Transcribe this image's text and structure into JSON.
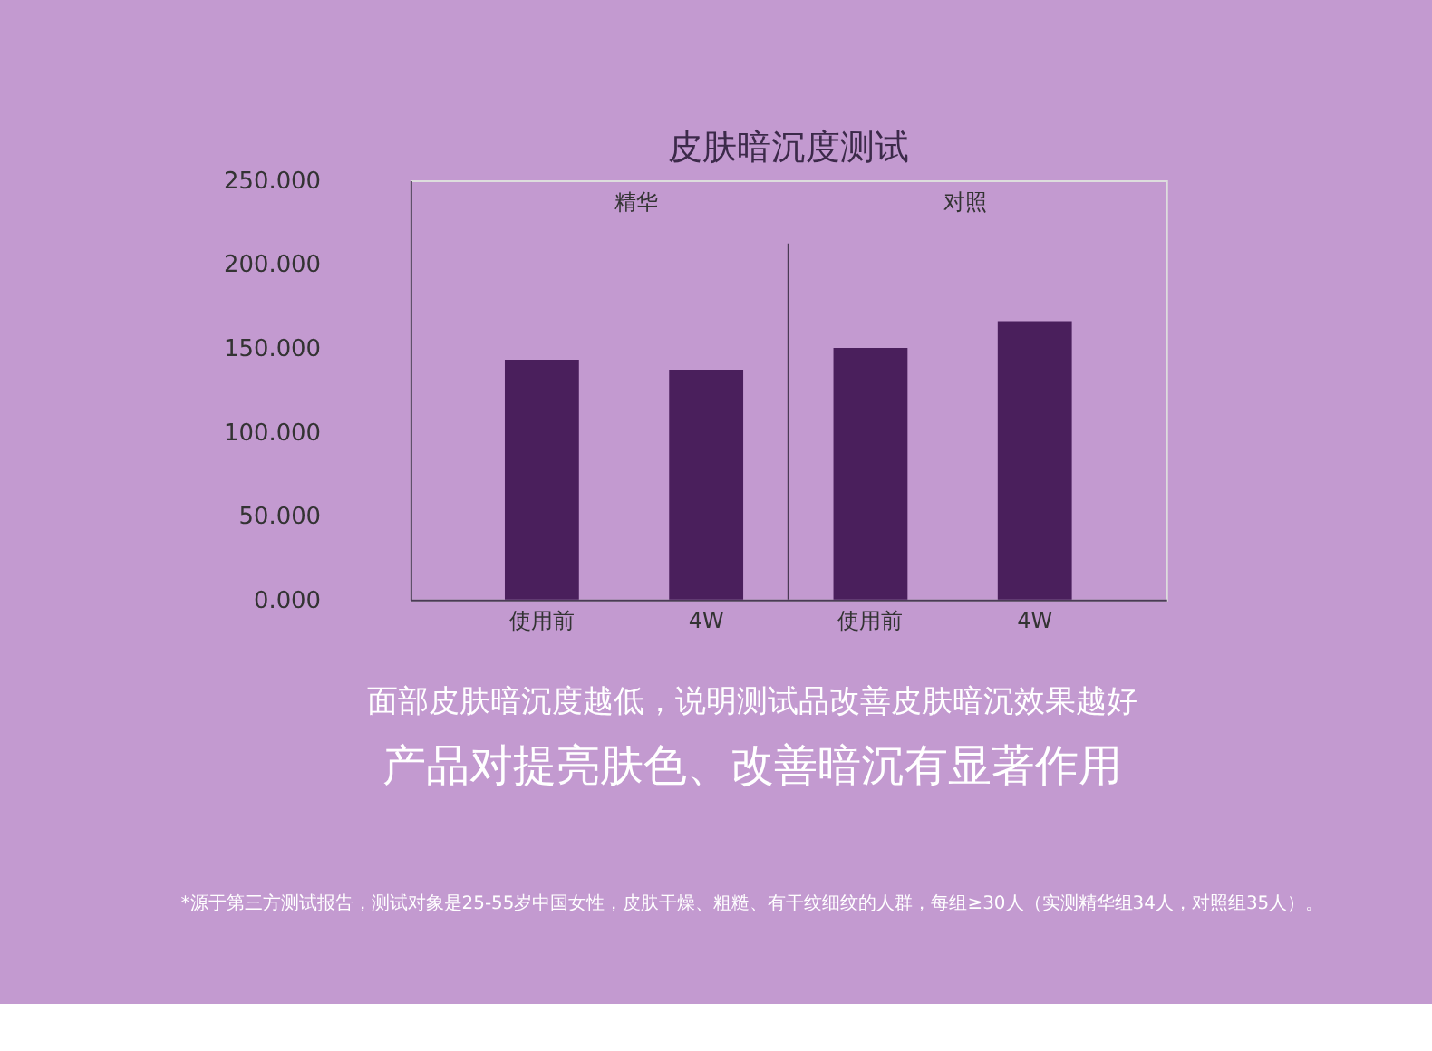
{
  "chart_data": {
    "type": "bar",
    "title": "皮肤暗沉度测试",
    "categories": [
      "使用前",
      "4W",
      "使用前",
      "4W"
    ],
    "series": [
      {
        "color": "#4a1f5c",
        "values": [
          143,
          137,
          150,
          166
        ]
      }
    ],
    "ylim": [
      0,
      250
    ],
    "yticks": [
      {
        "value": 0,
        "label": "0.000"
      },
      {
        "value": 50,
        "label": "50.000"
      },
      {
        "value": 100,
        "label": "100.000"
      },
      {
        "value": 150,
        "label": "150.000"
      },
      {
        "value": 200,
        "label": "200.000"
      },
      {
        "value": 250,
        "label": "250.000"
      }
    ],
    "grid": false,
    "annotations": [
      "精华",
      "对照",
      "面部皮肤暗沉度越低，说明测试品改善皮肤暗沉效果越好",
      "产品对提亮肤色、改善暗沉有显著作用",
      "*源于第三方测试报告，测试对象是25-55岁中国女性，皮肤干燥、粗糙、有干纹细纹的人群，每组≥30人（实测精华组34人，对照组35人）。"
    ]
  }
}
